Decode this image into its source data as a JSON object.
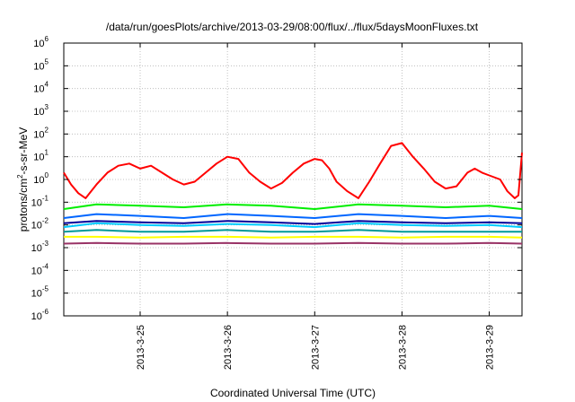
{
  "chart_data": {
    "type": "line",
    "title": "/data/run/goesPlots/archive/2013-03-29/08:00/flux/../flux/5daysMoonFluxes.txt",
    "xlabel": "Coordinated Universal Time (UTC)",
    "ylabel": "protons/cm2-s-sr-MeV",
    "ylabel_parts": {
      "prefix": "protons/cm",
      "sup": "2",
      "suffix": "-s-sr-MeV"
    },
    "y_scale": "log",
    "ylim": [
      1e-06,
      1000000.0
    ],
    "xlim": [
      "2013-03-24T03:00",
      "2013-03-29T09:00"
    ],
    "x_ticks": [
      "2013-3-25",
      "2013-3-26",
      "2013-3-27",
      "2013-3-28",
      "2013-3-29"
    ],
    "y_ticks": [
      {
        "base": "10",
        "exp": "-6"
      },
      {
        "base": "10",
        "exp": "-5"
      },
      {
        "base": "10",
        "exp": "-4"
      },
      {
        "base": "10",
        "exp": "-3"
      },
      {
        "base": "10",
        "exp": "-2"
      },
      {
        "base": "10",
        "exp": "-1"
      },
      {
        "base": "10",
        "exp": "0"
      },
      {
        "base": "10",
        "exp": "1"
      },
      {
        "base": "10",
        "exp": "2"
      },
      {
        "base": "10",
        "exp": "3"
      },
      {
        "base": "10",
        "exp": "4"
      },
      {
        "base": "10",
        "exp": "5"
      },
      {
        "base": "10",
        "exp": "6"
      }
    ],
    "grid": true,
    "legend": "none",
    "series": [
      {
        "color": "#ff0000",
        "x": [
          "2013-03-24T03:00",
          "2013-03-24T05:00",
          "2013-03-24T07:00",
          "2013-03-24T09:00",
          "2013-03-24T12:00",
          "2013-03-24T15:00",
          "2013-03-24T18:00",
          "2013-03-24T21:00",
          "2013-03-25T00:00",
          "2013-03-25T03:00",
          "2013-03-25T06:00",
          "2013-03-25T09:00",
          "2013-03-25T12:00",
          "2013-03-25T15:00",
          "2013-03-25T18:00",
          "2013-03-25T21:00",
          "2013-03-26T00:00",
          "2013-03-26T03:00",
          "2013-03-26T06:00",
          "2013-03-26T09:00",
          "2013-03-26T12:00",
          "2013-03-26T15:00",
          "2013-03-26T18:00",
          "2013-03-26T21:00",
          "2013-03-27T00:00",
          "2013-03-27T02:00",
          "2013-03-27T04:00",
          "2013-03-27T06:00",
          "2013-03-27T09:00",
          "2013-03-27T12:00",
          "2013-03-27T15:00",
          "2013-03-27T18:00",
          "2013-03-27T21:00",
          "2013-03-28T00:00",
          "2013-03-28T03:00",
          "2013-03-28T06:00",
          "2013-03-28T09:00",
          "2013-03-28T12:00",
          "2013-03-28T15:00",
          "2013-03-28T18:00",
          "2013-03-28T20:00",
          "2013-03-28T22:00",
          "2013-03-29T00:00",
          "2013-03-29T03:00",
          "2013-03-29T05:00",
          "2013-03-29T07:00",
          "2013-03-29T08:00",
          "2013-03-29T09:00"
        ],
        "y": [
          2,
          0.6,
          0.25,
          0.15,
          0.6,
          2,
          4,
          5,
          3,
          4,
          2,
          1,
          0.6,
          0.8,
          2,
          5,
          10,
          8,
          2,
          0.8,
          0.4,
          0.7,
          2,
          5,
          8,
          7,
          3,
          0.8,
          0.3,
          0.15,
          0.8,
          5,
          30,
          40,
          10,
          3,
          0.8,
          0.4,
          0.5,
          2,
          3,
          2,
          1.5,
          1,
          0.3,
          0.15,
          0.2,
          15
        ]
      },
      {
        "color": "#00ee00",
        "x": [
          "2013-03-24T03:00",
          "2013-03-24T12:00",
          "2013-03-25T00:00",
          "2013-03-25T12:00",
          "2013-03-26T00:00",
          "2013-03-26T12:00",
          "2013-03-27T00:00",
          "2013-03-27T12:00",
          "2013-03-28T00:00",
          "2013-03-28T12:00",
          "2013-03-29T00:00",
          "2013-03-29T09:00"
        ],
        "y": [
          0.05,
          0.08,
          0.07,
          0.06,
          0.08,
          0.07,
          0.05,
          0.08,
          0.07,
          0.06,
          0.07,
          0.05
        ]
      },
      {
        "color": "#00ccff",
        "x": [
          "2013-03-24T03:00",
          "2013-03-24T12:00",
          "2013-03-25T00:00",
          "2013-03-25T12:00",
          "2013-03-26T00:00",
          "2013-03-26T12:00",
          "2013-03-27T00:00",
          "2013-03-27T12:00",
          "2013-03-28T00:00",
          "2013-03-28T12:00",
          "2013-03-29T00:00",
          "2013-03-29T09:00"
        ],
        "y": [
          0.008,
          0.012,
          0.01,
          0.009,
          0.011,
          0.01,
          0.008,
          0.012,
          0.01,
          0.009,
          0.01,
          0.008
        ]
      },
      {
        "color": "#0066ff",
        "x": [
          "2013-03-24T03:00",
          "2013-03-24T12:00",
          "2013-03-25T00:00",
          "2013-03-25T12:00",
          "2013-03-26T00:00",
          "2013-03-26T12:00",
          "2013-03-27T00:00",
          "2013-03-27T12:00",
          "2013-03-28T00:00",
          "2013-03-28T12:00",
          "2013-03-29T00:00",
          "2013-03-29T09:00"
        ],
        "y": [
          0.02,
          0.03,
          0.025,
          0.02,
          0.03,
          0.025,
          0.02,
          0.03,
          0.025,
          0.02,
          0.025,
          0.02
        ]
      },
      {
        "color": "#000099",
        "x": [
          "2013-03-24T03:00",
          "2013-03-24T12:00",
          "2013-03-25T00:00",
          "2013-03-25T12:00",
          "2013-03-26T00:00",
          "2013-03-26T12:00",
          "2013-03-27T00:00",
          "2013-03-27T12:00",
          "2013-03-28T00:00",
          "2013-03-28T12:00",
          "2013-03-29T00:00",
          "2013-03-29T09:00"
        ],
        "y": [
          0.012,
          0.015,
          0.013,
          0.012,
          0.015,
          0.013,
          0.011,
          0.015,
          0.013,
          0.012,
          0.013,
          0.012
        ]
      },
      {
        "color": "#009999",
        "x": [
          "2013-03-24T03:00",
          "2013-03-24T12:00",
          "2013-03-25T00:00",
          "2013-03-25T12:00",
          "2013-03-26T00:00",
          "2013-03-26T12:00",
          "2013-03-27T00:00",
          "2013-03-27T12:00",
          "2013-03-28T00:00",
          "2013-03-28T12:00",
          "2013-03-29T00:00",
          "2013-03-29T09:00"
        ],
        "y": [
          0.005,
          0.006,
          0.005,
          0.005,
          0.006,
          0.005,
          0.005,
          0.006,
          0.005,
          0.005,
          0.005,
          0.005
        ]
      },
      {
        "color": "#ffff00",
        "x": [
          "2013-03-24T03:00",
          "2013-03-24T12:00",
          "2013-03-25T00:00",
          "2013-03-25T12:00",
          "2013-03-26T00:00",
          "2013-03-26T12:00",
          "2013-03-27T00:00",
          "2013-03-27T12:00",
          "2013-03-28T00:00",
          "2013-03-28T12:00",
          "2013-03-29T00:00",
          "2013-03-29T09:00"
        ],
        "y": [
          0.003,
          0.003,
          0.0028,
          0.003,
          0.003,
          0.0028,
          0.003,
          0.003,
          0.0028,
          0.003,
          0.003,
          0.0028
        ]
      },
      {
        "color": "#993366",
        "x": [
          "2013-03-24T03:00",
          "2013-03-24T12:00",
          "2013-03-25T00:00",
          "2013-03-25T12:00",
          "2013-03-26T00:00",
          "2013-03-26T12:00",
          "2013-03-27T00:00",
          "2013-03-27T12:00",
          "2013-03-28T00:00",
          "2013-03-28T12:00",
          "2013-03-29T00:00",
          "2013-03-29T09:00"
        ],
        "y": [
          0.0015,
          0.0016,
          0.0015,
          0.0015,
          0.0016,
          0.0015,
          0.0015,
          0.0016,
          0.0015,
          0.0015,
          0.0016,
          0.0015
        ]
      }
    ]
  }
}
